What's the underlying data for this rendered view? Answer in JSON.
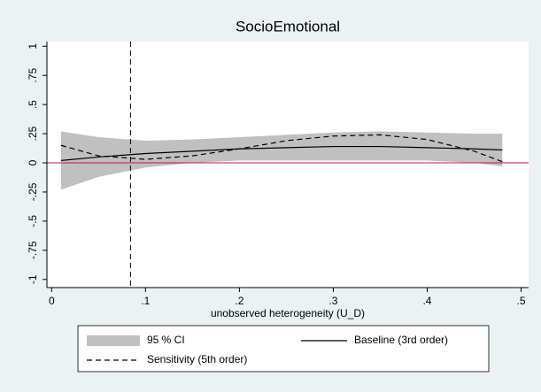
{
  "chart_data": {
    "type": "line",
    "title": "SocioEmotional",
    "xlabel": "unobserved heterogeneity (U_D)",
    "x": [
      0.01,
      0.05,
      0.1,
      0.15,
      0.2,
      0.25,
      0.3,
      0.35,
      0.4,
      0.45,
      0.48
    ],
    "series": [
      {
        "name": "95 % CI",
        "color": "#c0c0c0",
        "lower": [
          -0.23,
          -0.12,
          -0.04,
          0.0,
          0.02,
          0.02,
          0.02,
          0.02,
          0.02,
          0.0,
          -0.03
        ],
        "upper": [
          0.27,
          0.22,
          0.19,
          0.2,
          0.22,
          0.24,
          0.26,
          0.27,
          0.26,
          0.25,
          0.25
        ]
      },
      {
        "name": "Baseline (3rd order)",
        "color": "#000000",
        "values": [
          0.02,
          0.05,
          0.08,
          0.1,
          0.12,
          0.13,
          0.14,
          0.14,
          0.13,
          0.12,
          0.11
        ]
      },
      {
        "name": "Sensitivity (5th order)",
        "color": "#000000",
        "dashed": true,
        "values": [
          0.15,
          0.06,
          0.03,
          0.06,
          0.12,
          0.19,
          0.23,
          0.24,
          0.2,
          0.1,
          0.01
        ]
      }
    ],
    "xline": 0.084,
    "yline": 0,
    "yline_color": "#c0143c",
    "xlim": [
      -0.005,
      0.508
    ],
    "ylim": [
      -1.07,
      1.04
    ],
    "xticks": [
      0,
      {
        "value": 0.1,
        "label": ".1"
      },
      {
        "value": 0.2,
        "label": ".2"
      },
      {
        "value": 0.3,
        "label": ".3"
      },
      {
        "value": 0.4,
        "label": ".4"
      },
      {
        "value": 0.5,
        "label": ".5"
      }
    ],
    "yticks": [
      1,
      {
        "value": 0.75,
        "label": ".75"
      },
      {
        "value": 0.5,
        "label": ".5"
      },
      {
        "value": 0.25,
        "label": ".25"
      },
      0,
      {
        "value": -0.25,
        "label": "-.25"
      },
      {
        "value": -0.5,
        "label": "-.5"
      },
      {
        "value": -0.75,
        "label": "-.75"
      },
      -1
    ]
  }
}
